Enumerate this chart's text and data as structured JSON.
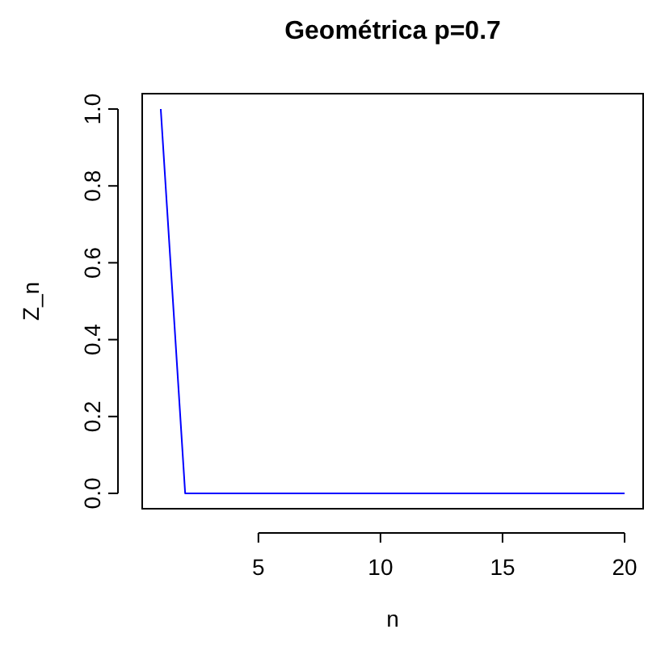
{
  "chart_data": {
    "type": "line",
    "title": "Geométrica p=0.7",
    "xlabel": "n",
    "ylabel": "Z_n",
    "x": [
      1,
      2,
      3,
      4,
      5,
      6,
      7,
      8,
      9,
      10,
      11,
      12,
      13,
      14,
      15,
      16,
      17,
      18,
      19,
      20
    ],
    "series": [
      {
        "color": "#0000ff",
        "values": [
          1,
          0,
          0,
          0,
          0,
          0,
          0,
          0,
          0,
          0,
          0,
          0,
          0,
          0,
          0,
          0,
          0,
          0,
          0,
          0
        ]
      }
    ],
    "xlim": [
      0.24,
      20.76
    ],
    "ylim": [
      -0.04,
      1.04
    ],
    "xticks": [
      5,
      10,
      15,
      20
    ],
    "yticks": [
      {
        "value": 0,
        "label": "0.0"
      },
      {
        "value": 0.2,
        "label": "0.2"
      },
      {
        "value": 0.4,
        "label": "0.4"
      },
      {
        "value": 0.6,
        "label": "0.6"
      },
      {
        "value": 0.8,
        "label": "0.8"
      },
      {
        "value": 1,
        "label": "1.0"
      }
    ],
    "marker": "none",
    "line_style": "solid"
  }
}
